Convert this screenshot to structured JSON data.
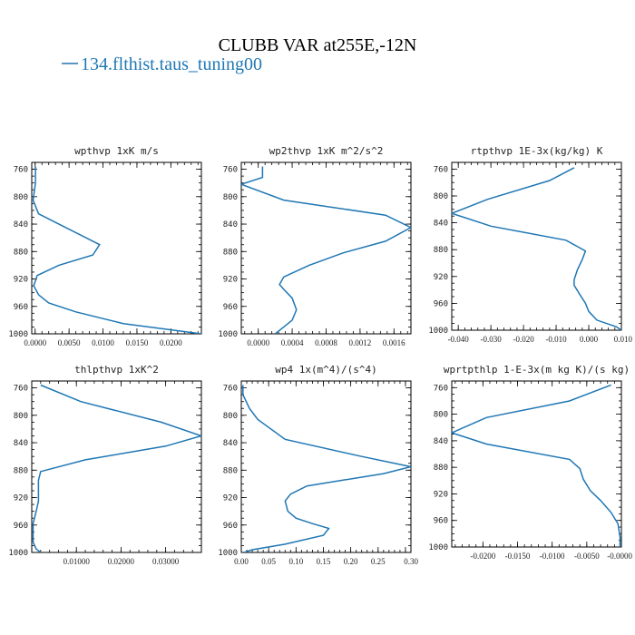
{
  "figure": {
    "title": "CLUBB VAR at255E,-12N",
    "legend": {
      "label": "134.flthist.taus_tuning00",
      "color": "#1f77b4"
    }
  },
  "chart_data": [
    {
      "type": "line",
      "title": "wpthvp  1xK m/s",
      "xlim": [
        -0.0005,
        0.0245
      ],
      "ylim": [
        1000,
        750
      ],
      "yticks": [
        760,
        800,
        840,
        880,
        920,
        960,
        1000
      ],
      "ytick_labels": [
        "760",
        "800",
        "840",
        "880",
        "920",
        "960",
        "1000"
      ],
      "xticks": [
        0,
        0.005,
        0.01,
        0.015,
        0.02
      ],
      "xtick_labels": [
        "0.0000",
        "0.0050",
        "0.0100",
        "0.0150",
        "0.0200"
      ],
      "series": [
        {
          "color": "#1f77b4",
          "x": [
            5e-05,
            5e-05,
            -0.0003,
            0.0005,
            0.0045,
            0.0095,
            0.0085,
            0.0035,
            0.0003,
            -0.0002,
            0.0005,
            0.002,
            0.006,
            0.013,
            0.0245
          ],
          "y": [
            756,
            780,
            805,
            825,
            845,
            870,
            885,
            900,
            915,
            930,
            943,
            955,
            968,
            985,
            1000
          ]
        }
      ]
    },
    {
      "type": "line",
      "title": "wp2thvp  1xK m^2/s^2",
      "xlim": [
        -0.0002,
        0.0018
      ],
      "ylim": [
        1000,
        750
      ],
      "yticks": [
        760,
        800,
        840,
        880,
        920,
        960,
        1000
      ],
      "ytick_labels": [
        "760",
        "800",
        "840",
        "880",
        "920",
        "960",
        "1000"
      ],
      "xticks": [
        0,
        0.0004,
        0.0008,
        0.0012,
        0.0016
      ],
      "xtick_labels": [
        "0.0000",
        "0.0004",
        "0.0008",
        "0.0012",
        "0.0016"
      ],
      "series": [
        {
          "color": "#1f77b4",
          "x": [
            5e-05,
            5e-05,
            -0.0002,
            0.0003,
            0.0015,
            0.0018,
            0.0015,
            0.001,
            0.0006,
            0.0003,
            0.00025,
            0.0003,
            0.0004,
            0.00045,
            0.0004,
            0.0003,
            0.0002
          ],
          "y": [
            756,
            772,
            782,
            805,
            827,
            845,
            865,
            882,
            900,
            917,
            928,
            935,
            948,
            965,
            980,
            990,
            1000
          ]
        }
      ]
    },
    {
      "type": "line",
      "title": "rtpthvp  1E-3x(kg/kg) K",
      "xlim": [
        -0.042,
        0.01
      ],
      "ylim": [
        1000,
        750
      ],
      "yticks": [
        760,
        800,
        840,
        880,
        920,
        960,
        1000
      ],
      "ytick_labels": [
        "760",
        "800",
        "840",
        "880",
        "920",
        "960",
        "1000"
      ],
      "xticks": [
        -0.04,
        -0.03,
        -0.02,
        -0.01,
        0.0,
        0.01
      ],
      "xtick_labels": [
        "-0.040",
        "-0.030",
        "-0.020",
        "-0.010",
        "0.000",
        "0.010"
      ],
      "series": [
        {
          "color": "#1f77b4",
          "x": [
            -0.0045,
            -0.012,
            -0.031,
            -0.042,
            -0.03,
            -0.007,
            -0.001,
            -0.002,
            -0.0035,
            -0.0045,
            -0.0045,
            -0.003,
            -0.001,
            0.0,
            0.0025,
            0.0085,
            0.01
          ],
          "y": [
            758,
            777,
            805,
            826,
            845,
            866,
            882,
            895,
            910,
            925,
            933,
            945,
            960,
            972,
            985,
            995,
            1000
          ]
        }
      ]
    },
    {
      "type": "line",
      "title": "thlpthvp  1xK^2",
      "xlim": [
        0.0,
        0.038
      ],
      "ylim": [
        1000,
        750
      ],
      "yticks": [
        760,
        800,
        840,
        880,
        920,
        960,
        1000
      ],
      "ytick_labels": [
        "760",
        "800",
        "840",
        "880",
        "920",
        "960",
        "1000"
      ],
      "xticks": [
        0.01,
        0.02,
        0.03
      ],
      "xtick_labels": [
        "0.01000",
        "0.02000",
        "0.03000"
      ],
      "series": [
        {
          "color": "#1f77b4",
          "x": [
            0.002,
            0.011,
            0.029,
            0.038,
            0.03,
            0.012,
            0.002,
            0.0015,
            0.0015,
            0.0015,
            0.001,
            0.0003,
            0.0003,
            0.0003,
            0.001,
            0.002
          ],
          "y": [
            756,
            780,
            810,
            830,
            845,
            865,
            882,
            895,
            910,
            925,
            940,
            958,
            970,
            985,
            995,
            1000
          ]
        }
      ]
    },
    {
      "type": "line",
      "title": "wp4  1x(m^4)/(s^4)",
      "xlim": [
        0.0,
        0.31
      ],
      "ylim": [
        1000,
        750
      ],
      "yticks": [
        760,
        800,
        840,
        880,
        920,
        960,
        1000
      ],
      "ytick_labels": [
        "760",
        "800",
        "840",
        "880",
        "920",
        "960",
        "1000"
      ],
      "xticks": [
        0.0,
        0.05,
        0.1,
        0.15,
        0.2,
        0.25,
        0.3
      ],
      "xtick_labels": [
        "0.00",
        "0.05",
        "0.10",
        "0.15",
        "0.20",
        "0.25",
        "0.30"
      ],
      "series": [
        {
          "color": "#1f77b4",
          "x": [
            0.003,
            0.003,
            0.015,
            0.03,
            0.08,
            0.22,
            0.31,
            0.26,
            0.12,
            0.09,
            0.08,
            0.085,
            0.1,
            0.13,
            0.16,
            0.15,
            0.08,
            0.02,
            0.005
          ],
          "y": [
            756,
            770,
            790,
            806,
            835,
            860,
            875,
            885,
            903,
            915,
            925,
            940,
            950,
            958,
            965,
            975,
            988,
            996,
            1000
          ]
        }
      ]
    },
    {
      "type": "line",
      "title": "wprtpthlp  1-E-3x(m kg K)/(s kg)",
      "xlim": [
        -0.0245,
        0.0
      ],
      "ylim": [
        1000,
        750
      ],
      "yticks": [
        760,
        800,
        840,
        880,
        920,
        960,
        1000
      ],
      "ytick_labels": [
        "760",
        "800",
        "840",
        "880",
        "920",
        "960",
        "1000"
      ],
      "xticks": [
        -0.02,
        -0.015,
        -0.01,
        -0.005,
        0.0
      ],
      "xtick_labels": [
        "-0.0200",
        "-0.0150",
        "-0.0100",
        "-0.0050",
        "-0.0000"
      ],
      "series": [
        {
          "color": "#1f77b4",
          "x": [
            -0.0015,
            -0.0075,
            -0.0195,
            -0.0245,
            -0.0195,
            -0.0075,
            -0.006,
            -0.0055,
            -0.0045,
            -0.003,
            -0.0015,
            -0.0005,
            -0.0002,
            -0.0002
          ],
          "y": [
            756,
            780,
            805,
            828,
            845,
            868,
            882,
            898,
            915,
            930,
            948,
            965,
            985,
            1000
          ]
        }
      ]
    }
  ]
}
